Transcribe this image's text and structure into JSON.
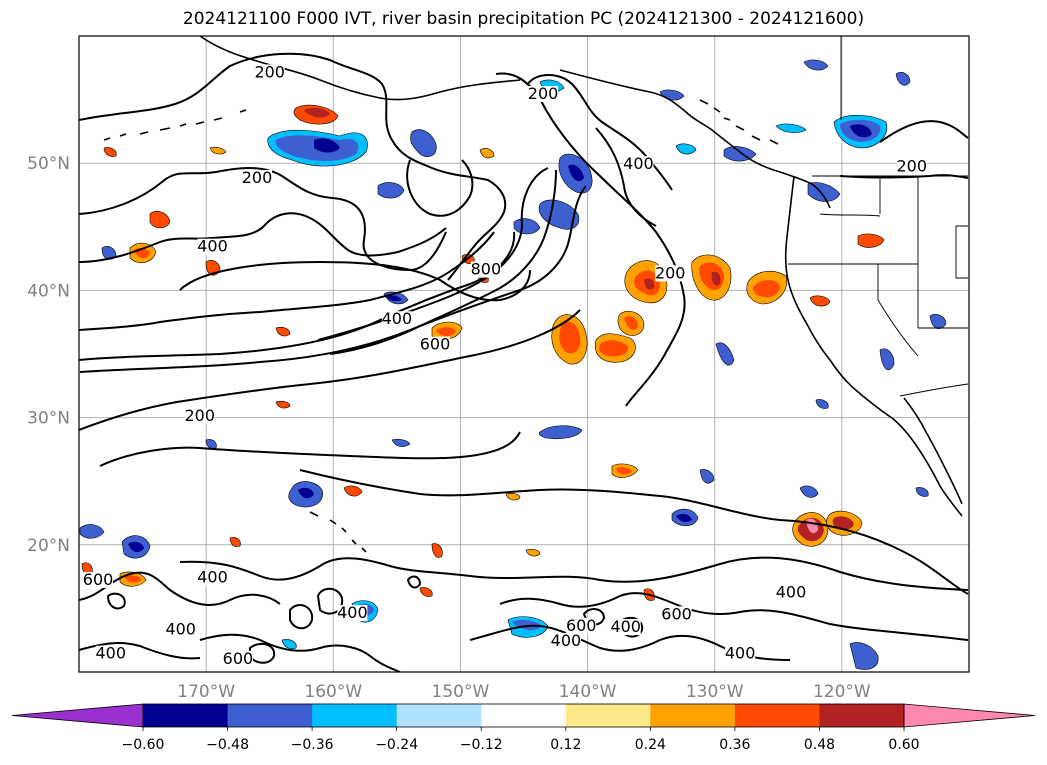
{
  "title": "2024121100 F000 IVT, river basin precipitation PC (2024121300 - 2024121600)",
  "map": {
    "projection": "plate-carree",
    "lon_range": [
      -180,
      -110
    ],
    "lat_range": [
      10,
      60
    ],
    "grid": true,
    "lat_ticks": [
      {
        "value": 50,
        "label": "50°N"
      },
      {
        "value": 40,
        "label": "40°N"
      },
      {
        "value": 30,
        "label": "30°N"
      },
      {
        "value": 20,
        "label": "20°N"
      }
    ],
    "lon_ticks": [
      {
        "value": -170,
        "label": "170°W"
      },
      {
        "value": -160,
        "label": "160°W"
      },
      {
        "value": -150,
        "label": "150°W"
      },
      {
        "value": -140,
        "label": "140°W"
      },
      {
        "value": -130,
        "label": "130°W"
      },
      {
        "value": -120,
        "label": "120°W"
      }
    ],
    "ivt_contour_labels": [
      {
        "text": "200",
        "lon": -166,
        "lat": 48.6
      },
      {
        "text": "200",
        "lon": -165,
        "lat": 56.9
      },
      {
        "text": "200",
        "lon": -143.5,
        "lat": 55.2
      },
      {
        "text": "200",
        "lon": -133.5,
        "lat": 41.1
      },
      {
        "text": "200",
        "lon": -114.5,
        "lat": 49.5
      },
      {
        "text": "200",
        "lon": -170.5,
        "lat": 29.9
      },
      {
        "text": "400",
        "lon": -169.5,
        "lat": 43.2
      },
      {
        "text": "400",
        "lon": -155,
        "lat": 37.5
      },
      {
        "text": "400",
        "lon": -136,
        "lat": 49.7
      },
      {
        "text": "400",
        "lon": -169.5,
        "lat": 17.2
      },
      {
        "text": "400",
        "lon": -158.5,
        "lat": 14.4
      },
      {
        "text": "400",
        "lon": -172,
        "lat": 13.1
      },
      {
        "text": "400",
        "lon": -177.5,
        "lat": 11.2
      },
      {
        "text": "400",
        "lon": -141.7,
        "lat": 12.2
      },
      {
        "text": "400",
        "lon": -137,
        "lat": 13.3
      },
      {
        "text": "400",
        "lon": -124,
        "lat": 16.0
      },
      {
        "text": "400",
        "lon": -128,
        "lat": 11.2
      },
      {
        "text": "600",
        "lon": -152,
        "lat": 35.5
      },
      {
        "text": "600",
        "lon": -167.5,
        "lat": 10.8
      },
      {
        "text": "600",
        "lon": -140.5,
        "lat": 13.4
      },
      {
        "text": "600",
        "lon": -133,
        "lat": 14.3
      },
      {
        "text": "600",
        "lon": -178.5,
        "lat": 17.0
      },
      {
        "text": "800",
        "lon": -148,
        "lat": 41.4
      }
    ]
  },
  "colorbar": {
    "extend": "both",
    "ticks": [
      "−0.60",
      "−0.48",
      "−0.36",
      "−0.24",
      "−0.12",
      "0.12",
      "0.24",
      "0.36",
      "0.48",
      "0.60"
    ],
    "under_color": "#9b30d0",
    "over_color": "#ff88b0",
    "colors": [
      "#000090",
      "#3d5fd0",
      "#00bfff",
      "#b0e2ff",
      "#ffffff",
      "#ffe88a",
      "#ffa200",
      "#ff4a00",
      "#b22222"
    ]
  },
  "colors": {
    "ivt_contour": "#000000",
    "coastline": "#000000",
    "grid": "#b0b0b0",
    "tick_label": "#808080"
  }
}
